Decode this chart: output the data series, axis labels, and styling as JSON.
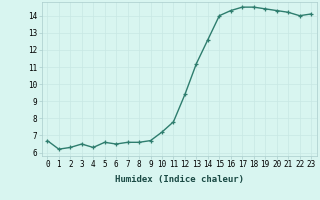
{
  "x": [
    0,
    1,
    2,
    3,
    4,
    5,
    6,
    7,
    8,
    9,
    10,
    11,
    12,
    13,
    14,
    15,
    16,
    17,
    18,
    19,
    20,
    21,
    22,
    23
  ],
  "y": [
    6.7,
    6.2,
    6.3,
    6.5,
    6.3,
    6.6,
    6.5,
    6.6,
    6.6,
    6.7,
    7.2,
    7.8,
    9.4,
    11.2,
    12.6,
    14.0,
    14.3,
    14.5,
    14.5,
    14.4,
    14.3,
    14.2,
    14.0,
    14.1
  ],
  "xlabel": "Humidex (Indice chaleur)",
  "ylim": [
    5.8,
    14.8
  ],
  "xlim": [
    -0.5,
    23.5
  ],
  "yticks": [
    6,
    7,
    8,
    9,
    10,
    11,
    12,
    13,
    14
  ],
  "xticks": [
    0,
    1,
    2,
    3,
    4,
    5,
    6,
    7,
    8,
    9,
    10,
    11,
    12,
    13,
    14,
    15,
    16,
    17,
    18,
    19,
    20,
    21,
    22,
    23
  ],
  "line_color": "#2e7d6e",
  "bg_color": "#d8f5f0",
  "grid_color": "#c8e8e4",
  "marker": "+",
  "marker_size": 3.5,
  "line_width": 1.0,
  "tick_fontsize": 5.5,
  "xlabel_fontsize": 6.5
}
